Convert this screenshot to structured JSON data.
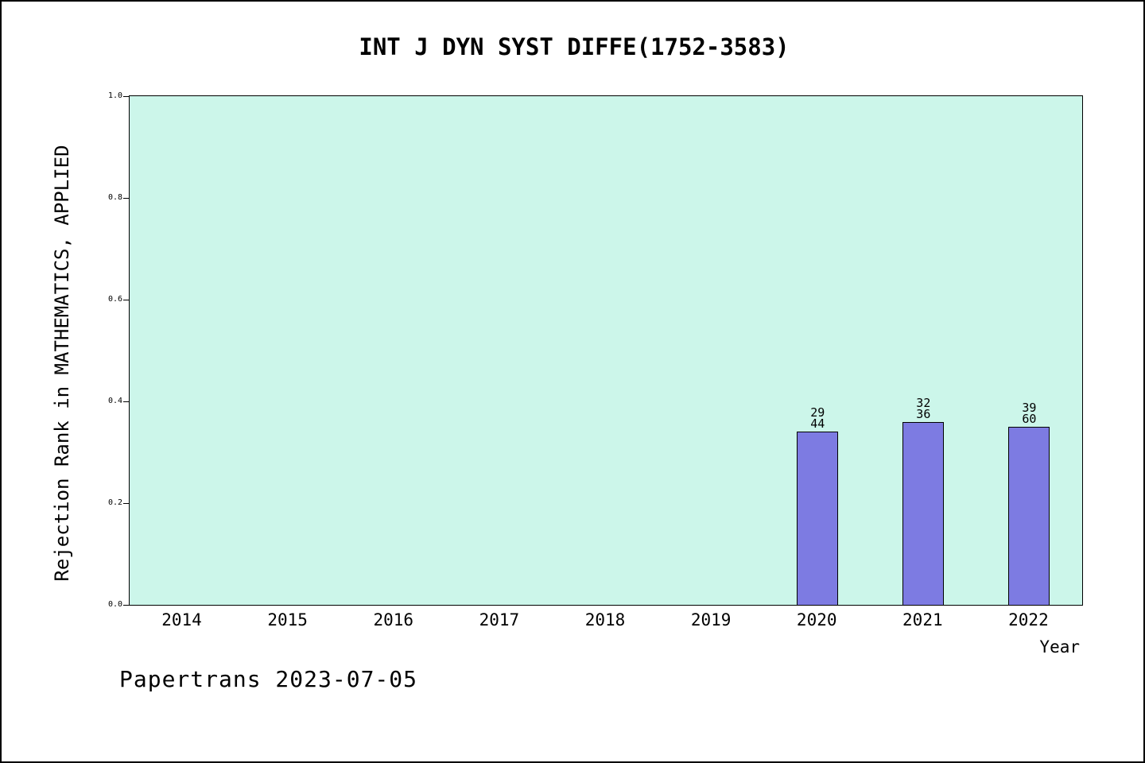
{
  "header": {
    "title": "INT J DYN SYST DIFFE(1752-3583)"
  },
  "footer": {
    "credit": "Papertrans 2023-07-05"
  },
  "chart_data": {
    "type": "bar",
    "title": "INT J DYN SYST DIFFE(1752-3583)",
    "xlabel": "Year",
    "ylabel": "Rejection Rank in MATHEMATICS, APPLIED",
    "categories": [
      "2014",
      "2015",
      "2016",
      "2017",
      "2018",
      "2019",
      "2020",
      "2021",
      "2022"
    ],
    "values": [
      null,
      null,
      null,
      null,
      null,
      null,
      0.34,
      0.36,
      0.35
    ],
    "bars": [
      {
        "category": "2020",
        "value": 0.34,
        "label_top": "29",
        "label_bottom": "44"
      },
      {
        "category": "2021",
        "value": 0.36,
        "label_top": "32",
        "label_bottom": "36"
      },
      {
        "category": "2022",
        "value": 0.35,
        "label_top": "39",
        "label_bottom": "60"
      }
    ],
    "yticks": [
      "0.0",
      "0.2",
      "0.4",
      "0.6",
      "0.8",
      "1.0"
    ],
    "ylim": [
      0,
      1
    ],
    "grid": false,
    "legend": "none",
    "colors": {
      "bar_fill": "#7d7be2",
      "bar_edge": "#000000",
      "plot_background": "#ccf6ea",
      "text": "#000000"
    }
  }
}
